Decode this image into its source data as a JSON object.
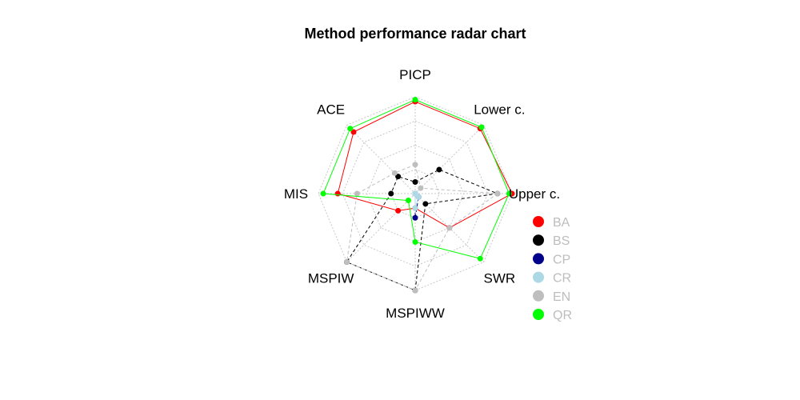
{
  "chart_data": {
    "type": "radar",
    "title": "Method performance radar chart",
    "axes": [
      "PICP",
      "Lower c.",
      "Upper c.",
      "SWR",
      "MSPIWW",
      "MSPIW",
      "MIS",
      "ACE"
    ],
    "scale": [
      0,
      1
    ],
    "grid_levels": 4,
    "legend_placement": "right",
    "series": [
      {
        "name": "BA",
        "color": "#ff0000",
        "line": "solid",
        "values": [
          0.95,
          0.95,
          1.0,
          0.5,
          0.15,
          0.25,
          0.8,
          0.9
        ]
      },
      {
        "name": "BS",
        "color": "#000000",
        "line": "dashed",
        "values": [
          0.12,
          0.35,
          0.85,
          0.15,
          1.0,
          1.0,
          0.25,
          0.25
        ]
      },
      {
        "name": "CP",
        "color": "#00008b",
        "line": "dashed",
        "values": [
          0.0,
          0.0,
          0.0,
          0.05,
          0.25,
          0.0,
          0.0,
          0.0
        ]
      },
      {
        "name": "CR",
        "color": "#add8e6",
        "line": "solid",
        "values": [
          0.0,
          0.0,
          0.0,
          0.05,
          0.15,
          0.0,
          0.0,
          0.0
        ]
      },
      {
        "name": "EN",
        "color": "#bebebe",
        "line": "dashed",
        "values": [
          0.3,
          0.08,
          0.85,
          0.5,
          1.0,
          1.0,
          0.6,
          0.3
        ]
      },
      {
        "name": "QR",
        "color": "#00ff00",
        "line": "solid",
        "values": [
          0.97,
          0.97,
          0.97,
          0.95,
          0.5,
          0.1,
          0.95,
          0.95
        ]
      }
    ]
  }
}
